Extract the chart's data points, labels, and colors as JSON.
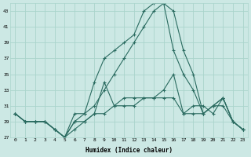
{
  "xlabel": "Humidex (Indice chaleur)",
  "bg_color": "#cce8e4",
  "line_color": "#2a6b60",
  "grid_color": "#aad4cc",
  "xlim": [
    -0.5,
    23.5
  ],
  "ylim": [
    27,
    44
  ],
  "yticks": [
    27,
    29,
    31,
    33,
    35,
    37,
    39,
    41,
    43
  ],
  "xticks": [
    0,
    1,
    2,
    3,
    4,
    5,
    6,
    7,
    8,
    9,
    10,
    11,
    12,
    13,
    14,
    15,
    16,
    17,
    18,
    19,
    20,
    21,
    22,
    23
  ],
  "line1_x": [
    0,
    1,
    2,
    3,
    4,
    5,
    6,
    7,
    8,
    9,
    10,
    11,
    12,
    13,
    14,
    15,
    16,
    17,
    18,
    19,
    20,
    21,
    22,
    23
  ],
  "line1_y": [
    30,
    29,
    29,
    29,
    28,
    27,
    28,
    29,
    30,
    34,
    31,
    32,
    32,
    32,
    32,
    33,
    35,
    30,
    31,
    31,
    30,
    32,
    29,
    28
  ],
  "line2_x": [
    0,
    1,
    2,
    3,
    4,
    5,
    6,
    7,
    8,
    9,
    10,
    11,
    12,
    13,
    14,
    15,
    16,
    17,
    18,
    19,
    20,
    21,
    22,
    23
  ],
  "line2_y": [
    30,
    29,
    29,
    29,
    28,
    27,
    29,
    29,
    30,
    30,
    31,
    31,
    31,
    32,
    32,
    32,
    32,
    30,
    30,
    30,
    31,
    31,
    29,
    28
  ],
  "line3_x": [
    0,
    1,
    2,
    3,
    4,
    5,
    6,
    7,
    8,
    9,
    10,
    11,
    12,
    13,
    14,
    15,
    16,
    17,
    18,
    19,
    20,
    21,
    22,
    23
  ],
  "line3_y": [
    30,
    29,
    29,
    29,
    28,
    27,
    30,
    30,
    31,
    33,
    35,
    37,
    39,
    41,
    43,
    44,
    43,
    38,
    35,
    30,
    31,
    32,
    29,
    28
  ],
  "line4_x": [
    0,
    1,
    2,
    3,
    4,
    5,
    6,
    7,
    8,
    9,
    10,
    11,
    12,
    13,
    14,
    15,
    16,
    17,
    18,
    19,
    20,
    21,
    22,
    23
  ],
  "line4_y": [
    30,
    29,
    29,
    29,
    28,
    27,
    29,
    30,
    34,
    37,
    38,
    39,
    40,
    43,
    44,
    44,
    38,
    35,
    33,
    30,
    31,
    32,
    29,
    28
  ]
}
